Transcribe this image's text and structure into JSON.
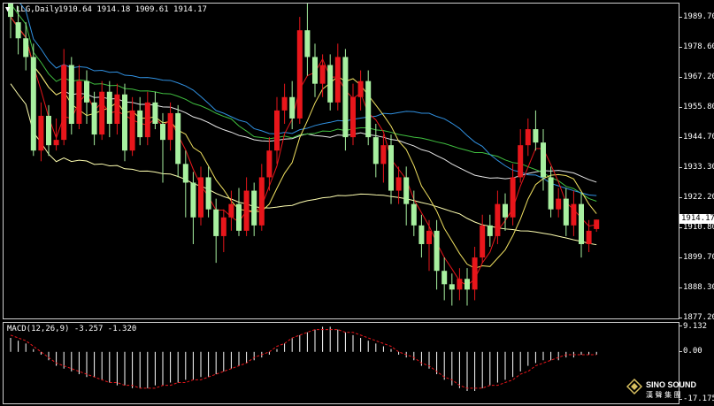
{
  "header": {
    "menu_glyph": "▼",
    "symbol": "LLG,Daily",
    "ohlc": "1910.64 1914.18 1909.61 1914.17"
  },
  "price_axis": {
    "ticks": [
      "1989.70",
      "1978.60",
      "1967.20",
      "1955.80",
      "1944.70",
      "1933.30",
      "1922.20",
      "1910.80",
      "1899.70",
      "1888.30",
      "1877.20"
    ],
    "current_price": "1914.17",
    "range": [
      1877.2,
      1995.0
    ]
  },
  "macd": {
    "label": "MACD(12,26,9) -3.257 -1.320",
    "ticks": [
      "9.132",
      "0.00",
      "-17.175"
    ],
    "range": [
      -17.175,
      9.132
    ]
  },
  "logo": {
    "en": "SINO SOUND",
    "cn": "漢 聲 集 團"
  },
  "colors": {
    "bull": "#e8161b",
    "bear": "#a8f0a0",
    "ma5": "#e8161b",
    "ma10": "#f0e060",
    "ma30": "#e8e8e8",
    "ma60": "#40c040",
    "ma120": "#3090e0",
    "ma240": "#ffffb0",
    "hist": "#ffffff",
    "signal": "#e8161b"
  },
  "chart_data": {
    "type": "candlestick",
    "candles": [
      [
        1995,
        1990,
        2003,
        1982
      ],
      [
        1988,
        1982,
        1994,
        1976
      ],
      [
        1982,
        1975,
        1988,
        1970
      ],
      [
        1975,
        1940,
        1980,
        1938
      ],
      [
        1940,
        1953,
        1958,
        1936
      ],
      [
        1953,
        1942,
        1957,
        1938
      ],
      [
        1942,
        1944,
        1952,
        1940
      ],
      [
        1944,
        1972,
        1978,
        1942
      ],
      [
        1972,
        1950,
        1975,
        1946
      ],
      [
        1950,
        1966,
        1972,
        1948
      ],
      [
        1966,
        1958,
        1970,
        1950
      ],
      [
        1958,
        1946,
        1962,
        1942
      ],
      [
        1946,
        1962,
        1966,
        1944
      ],
      [
        1962,
        1950,
        1966,
        1945
      ],
      [
        1950,
        1961,
        1965,
        1946
      ],
      [
        1961,
        1940,
        1965,
        1936
      ],
      [
        1940,
        1955,
        1960,
        1938
      ],
      [
        1955,
        1945,
        1960,
        1942
      ],
      [
        1945,
        1958,
        1962,
        1942
      ],
      [
        1958,
        1950,
        1962,
        1948
      ],
      [
        1950,
        1944,
        1954,
        1928
      ],
      [
        1944,
        1954,
        1958,
        1940
      ],
      [
        1954,
        1935,
        1957,
        1930
      ],
      [
        1935,
        1928,
        1940,
        1915
      ],
      [
        1928,
        1915,
        1932,
        1905
      ],
      [
        1915,
        1930,
        1934,
        1912
      ],
      [
        1930,
        1918,
        1934,
        1915
      ],
      [
        1918,
        1908,
        1922,
        1898
      ],
      [
        1908,
        1915,
        1918,
        1902
      ],
      [
        1915,
        1920,
        1925,
        1910
      ],
      [
        1920,
        1910,
        1926,
        1908
      ],
      [
        1910,
        1925,
        1930,
        1908
      ],
      [
        1925,
        1912,
        1928,
        1908
      ],
      [
        1912,
        1930,
        1935,
        1910
      ],
      [
        1930,
        1940,
        1945,
        1925
      ],
      [
        1940,
        1955,
        1960,
        1935
      ],
      [
        1955,
        1960,
        1965,
        1950
      ],
      [
        1960,
        1952,
        1966,
        1948
      ],
      [
        1952,
        1985,
        1990,
        1950
      ],
      [
        1985,
        1975,
        1995,
        1968
      ],
      [
        1975,
        1965,
        1980,
        1960
      ],
      [
        1965,
        1972,
        1976,
        1960
      ],
      [
        1972,
        1958,
        1976,
        1955
      ],
      [
        1958,
        1975,
        1980,
        1955
      ],
      [
        1975,
        1945,
        1978,
        1940
      ],
      [
        1945,
        1960,
        1965,
        1942
      ],
      [
        1960,
        1966,
        1970,
        1955
      ],
      [
        1966,
        1945,
        1970,
        1942
      ],
      [
        1945,
        1935,
        1950,
        1930
      ],
      [
        1935,
        1942,
        1946,
        1928
      ],
      [
        1942,
        1925,
        1946,
        1920
      ],
      [
        1925,
        1930,
        1934,
        1920
      ],
      [
        1930,
        1920,
        1934,
        1912
      ],
      [
        1920,
        1912,
        1925,
        1908
      ],
      [
        1912,
        1905,
        1916,
        1900
      ],
      [
        1905,
        1910,
        1914,
        1895
      ],
      [
        1910,
        1895,
        1914,
        1888
      ],
      [
        1895,
        1890,
        1900,
        1884
      ],
      [
        1890,
        1888,
        1894,
        1882
      ],
      [
        1888,
        1892,
        1896,
        1884
      ],
      [
        1892,
        1888,
        1896,
        1882
      ],
      [
        1888,
        1900,
        1904,
        1884
      ],
      [
        1900,
        1912,
        1916,
        1898
      ],
      [
        1912,
        1908,
        1916,
        1904
      ],
      [
        1908,
        1920,
        1925,
        1905
      ],
      [
        1920,
        1915,
        1924,
        1910
      ],
      [
        1915,
        1930,
        1935,
        1912
      ],
      [
        1930,
        1942,
        1948,
        1928
      ],
      [
        1942,
        1948,
        1952,
        1938
      ],
      [
        1948,
        1943,
        1955,
        1940
      ],
      [
        1943,
        1930,
        1948,
        1925
      ],
      [
        1930,
        1918,
        1934,
        1915
      ],
      [
        1918,
        1922,
        1926,
        1915
      ],
      [
        1922,
        1912,
        1926,
        1908
      ],
      [
        1912,
        1920,
        1925,
        1908
      ],
      [
        1920,
        1905,
        1924,
        1900
      ],
      [
        1905,
        1910,
        1914,
        1902
      ],
      [
        1910.64,
        1914.17,
        1914.18,
        1909.61
      ]
    ],
    "macd_histogram": [
      5,
      4,
      3,
      1,
      -1,
      -3,
      -5,
      -6,
      -7,
      -8,
      -9,
      -9,
      -10,
      -11,
      -12,
      -12,
      -13,
      -13,
      -13,
      -12,
      -12,
      -11,
      -11,
      -10,
      -10,
      -9,
      -9,
      -8,
      -7,
      -6,
      -5,
      -4,
      -3,
      -2,
      -1,
      1,
      3,
      5,
      6,
      7,
      8,
      9,
      9,
      8,
      7,
      6,
      5,
      4,
      3,
      2,
      1,
      -1,
      -2,
      -3,
      -5,
      -6,
      -8,
      -10,
      -12,
      -13,
      -14,
      -14,
      -13,
      -12,
      -11,
      -10,
      -9,
      -7,
      -5,
      -4,
      -3,
      -3,
      -3,
      -2,
      -2,
      -1,
      -1,
      -1
    ],
    "macd_signal": [
      6,
      5,
      4,
      2,
      0,
      -2,
      -4,
      -5,
      -6,
      -7,
      -8,
      -9,
      -10,
      -11,
      -11,
      -12,
      -12,
      -13,
      -13,
      -13,
      -12,
      -12,
      -11,
      -11,
      -10,
      -10,
      -9,
      -8,
      -7,
      -6,
      -5,
      -4,
      -2,
      -1,
      0,
      2,
      3,
      5,
      6,
      7,
      8,
      8,
      8,
      8,
      7,
      7,
      6,
      5,
      4,
      3,
      2,
      0,
      -1,
      -2,
      -4,
      -5,
      -7,
      -9,
      -10,
      -12,
      -13,
      -13,
      -13,
      -12,
      -12,
      -11,
      -10,
      -8,
      -7,
      -5,
      -4,
      -3,
      -2,
      -1,
      -1,
      -1,
      -1,
      -1
    ]
  }
}
